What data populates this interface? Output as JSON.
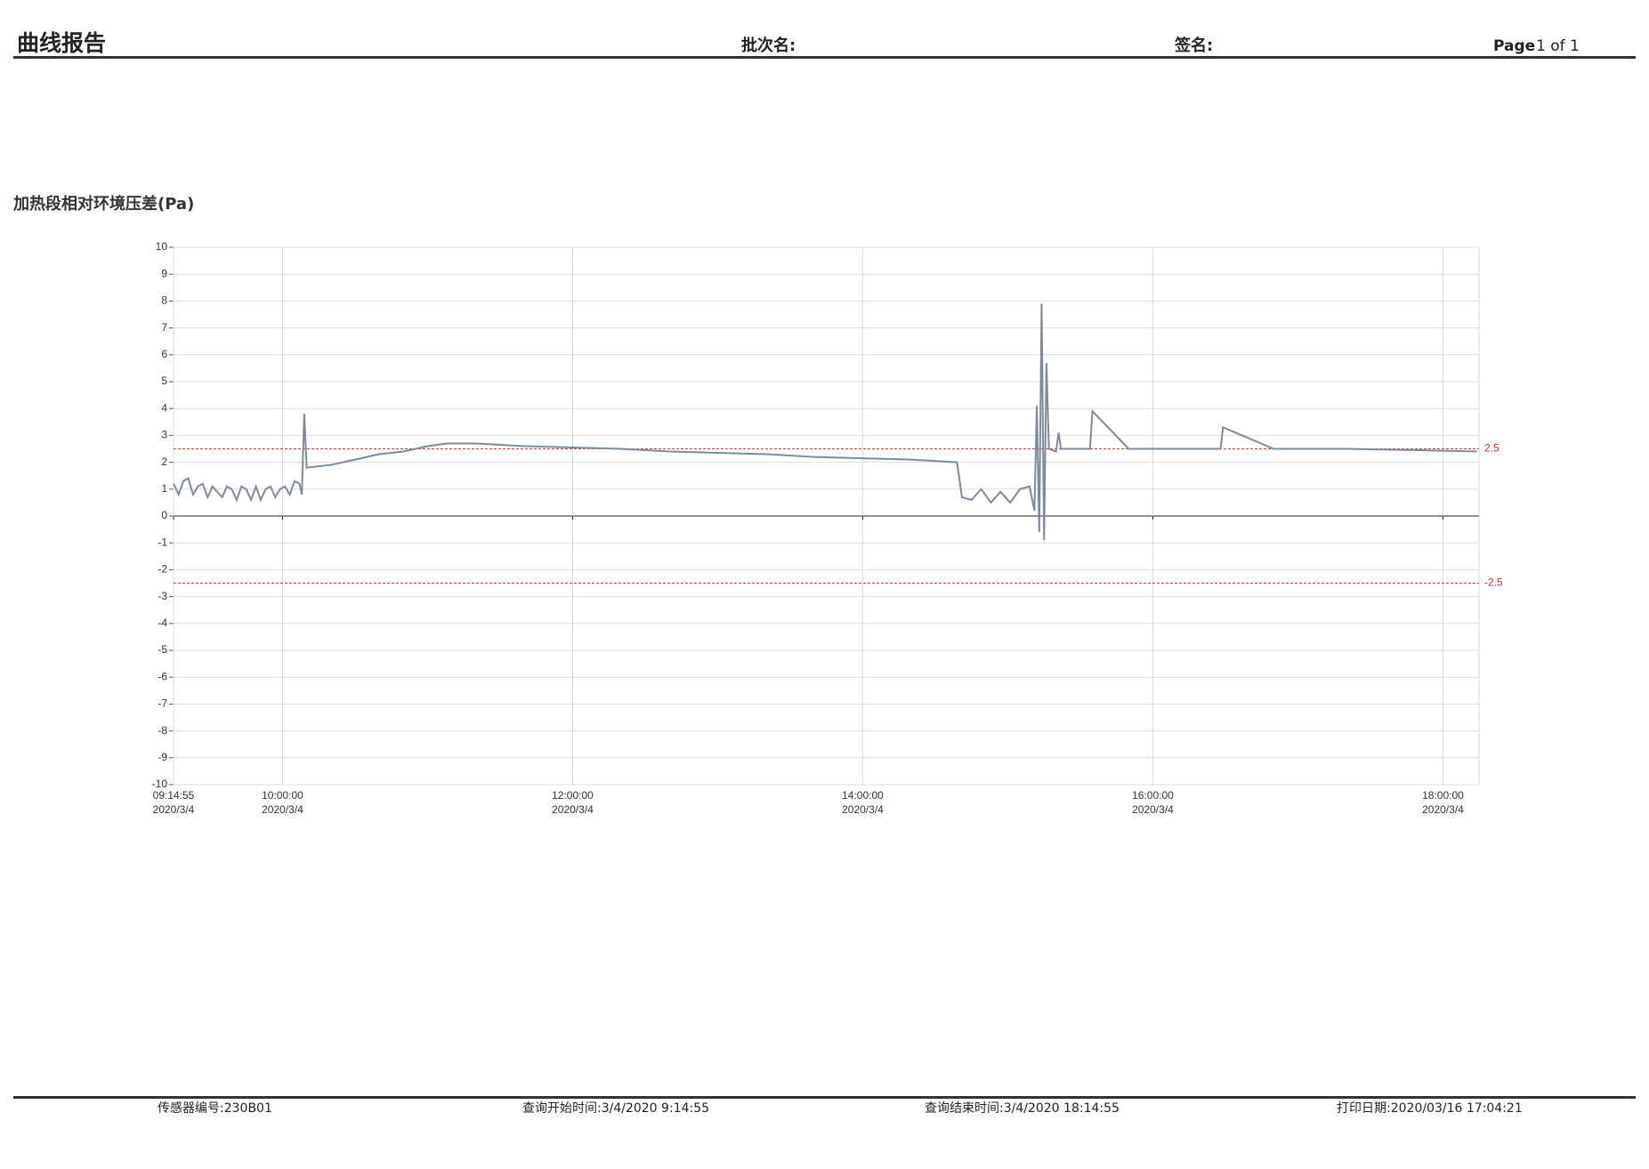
{
  "header": {
    "title": "曲线报告",
    "batch_label": "批次名:",
    "signature_label": "签名:",
    "page_word": "Page",
    "page_number": "1 of 1"
  },
  "footer": {
    "sensor": "传感器编号:230B01",
    "query_start": "查询开始时间:3/4/2020 9:14:55",
    "query_end": "查询结束时间:3/4/2020 18:14:55",
    "print_date": "打印日期:2020/03/16 17:04:21"
  },
  "chart_data": {
    "type": "line",
    "title": "加热段相对环境压差(Pa)",
    "xlim": [
      "09:14:55",
      "18:14:55"
    ],
    "xticks": [
      {
        "value": "09:14:55",
        "label": [
          "09:14:55",
          "2020/3/4"
        ]
      },
      {
        "value": "10:00:00",
        "label": [
          "10:00:00",
          "2020/3/4"
        ]
      },
      {
        "value": "12:00:00",
        "label": [
          "12:00:00",
          "2020/3/4"
        ]
      },
      {
        "value": "14:00:00",
        "label": [
          "14:00:00",
          "2020/3/4"
        ]
      },
      {
        "value": "16:00:00",
        "label": [
          "16:00:00",
          "2020/3/4"
        ]
      },
      {
        "value": "18:00:00",
        "label": [
          "18:00:00",
          "2020/3/4"
        ]
      }
    ],
    "ylim": [
      -10,
      10
    ],
    "yticks": [
      -10,
      -9,
      -8,
      -7,
      -6,
      -5,
      -4,
      -3,
      -2,
      -1,
      0,
      1,
      2,
      3,
      4,
      5,
      6,
      7,
      8,
      9,
      10
    ],
    "grid": true,
    "reference_lines": {
      "values": [
        2.5,
        -2.5
      ],
      "color": "#e03030"
    },
    "series": [
      {
        "name": "加热段相对环境压差",
        "color": "#7d8a9c",
        "x": [
          "09:15",
          "09:17",
          "09:19",
          "09:21",
          "09:23",
          "09:25",
          "09:27",
          "09:29",
          "09:31",
          "09:33",
          "09:35",
          "09:37",
          "09:39",
          "09:41",
          "09:43",
          "09:45",
          "09:47",
          "09:49",
          "09:51",
          "09:53",
          "09:55",
          "09:57",
          "09:59",
          "10:01",
          "10:03",
          "10:05",
          "10:07",
          "10:08",
          "10:09",
          "10:10",
          "10:20",
          "10:30",
          "10:40",
          "10:50",
          "11:00",
          "11:08",
          "11:20",
          "11:40",
          "12:00",
          "12:20",
          "12:40",
          "13:00",
          "13:20",
          "13:40",
          "14:00",
          "14:20",
          "14:39",
          "14:41",
          "14:45",
          "14:49",
          "14:53",
          "14:57",
          "15:01",
          "15:05",
          "15:09",
          "15:11",
          "15:12",
          "15:13",
          "15:14",
          "15:15",
          "15:16",
          "15:17",
          "15:20",
          "15:21",
          "15:22",
          "15:34",
          "15:35",
          "15:50",
          "16:10",
          "16:28",
          "16:29",
          "16:50",
          "17:20",
          "17:50",
          "18:14"
        ],
        "values": [
          1.2,
          0.8,
          1.3,
          1.4,
          0.8,
          1.1,
          1.2,
          0.7,
          1.1,
          0.9,
          0.7,
          1.1,
          1.0,
          0.6,
          1.1,
          1.0,
          0.6,
          1.1,
          0.6,
          1.0,
          1.1,
          0.7,
          1.0,
          1.1,
          0.8,
          1.3,
          1.2,
          0.8,
          3.8,
          1.8,
          1.9,
          2.1,
          2.3,
          2.4,
          2.6,
          2.7,
          2.7,
          2.6,
          2.55,
          2.5,
          2.4,
          2.35,
          2.3,
          2.2,
          2.15,
          2.1,
          2.0,
          0.7,
          0.6,
          1.0,
          0.5,
          0.9,
          0.5,
          1.0,
          1.1,
          0.2,
          4.1,
          -0.6,
          7.9,
          -0.9,
          5.7,
          2.5,
          2.4,
          3.1,
          2.5,
          2.5,
          3.9,
          2.5,
          2.5,
          2.5,
          3.3,
          2.5,
          2.5,
          2.45,
          2.4
        ]
      }
    ]
  }
}
